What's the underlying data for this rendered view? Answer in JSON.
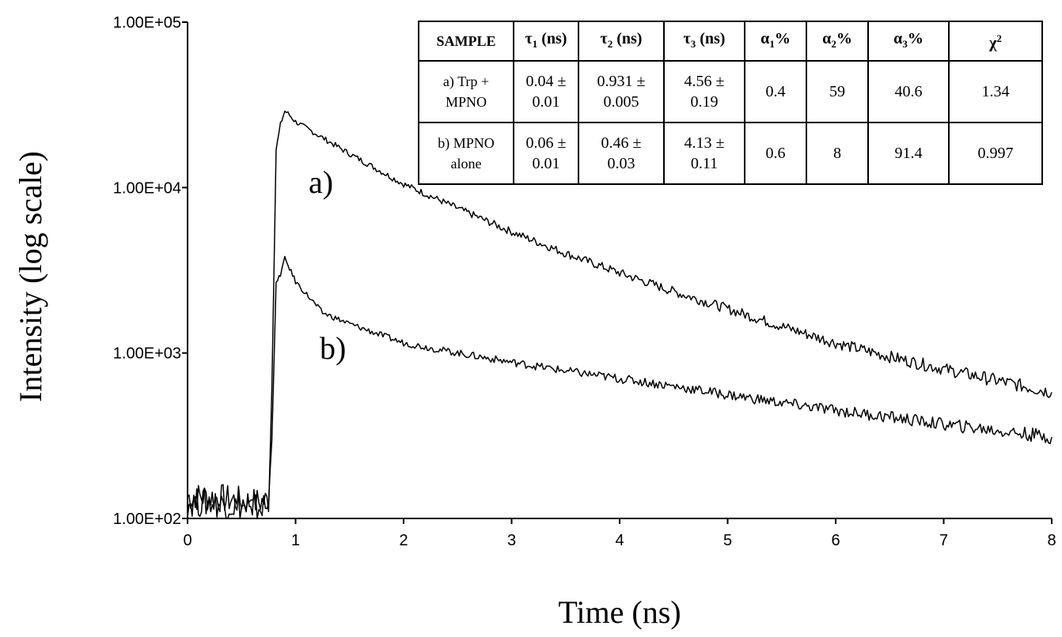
{
  "chart_data": {
    "type": "line",
    "ylabel": "Intensity (log scale)",
    "xlabel": "Time (ns)",
    "y_scale": "log",
    "xlim": [
      0,
      8
    ],
    "ylim": [
      100,
      100000
    ],
    "x_ticks": [
      "0",
      "1",
      "2",
      "3",
      "4",
      "5",
      "6",
      "7",
      "8"
    ],
    "y_ticks": [
      {
        "value": 100000,
        "label": "1.00E+05"
      },
      {
        "value": 10000,
        "label": "1.00E+04"
      },
      {
        "value": 1000,
        "label": "1.00E+03"
      },
      {
        "value": 100,
        "label": "1.00E+02"
      }
    ],
    "series": [
      {
        "name": "a)",
        "x": [
          0.0,
          0.2,
          0.4,
          0.6,
          0.75,
          0.78,
          0.82,
          0.86,
          0.9,
          0.93,
          1.0,
          1.25,
          1.5,
          2.0,
          2.5,
          3.0,
          3.5,
          4.0,
          4.5,
          5.0,
          5.5,
          6.0,
          6.5,
          7.0,
          7.5,
          8.0
        ],
        "y": [
          135,
          135,
          130,
          125,
          128,
          600,
          17000,
          24000,
          29000,
          28000,
          25000,
          20000,
          16000,
          10500,
          7500,
          5400,
          4000,
          3050,
          2350,
          1850,
          1450,
          1150,
          950,
          800,
          680,
          580
        ]
      },
      {
        "name": "b)",
        "x": [
          0.0,
          0.2,
          0.4,
          0.6,
          0.75,
          0.78,
          0.82,
          0.86,
          0.9,
          0.93,
          1.0,
          1.25,
          1.5,
          2.0,
          2.5,
          3.0,
          3.5,
          4.0,
          4.5,
          5.0,
          5.5,
          6.0,
          6.5,
          7.0,
          7.5,
          8.0
        ],
        "y": [
          125,
          125,
          120,
          115,
          118,
          300,
          2600,
          3000,
          3700,
          3400,
          2700,
          1750,
          1500,
          1150,
          1000,
          880,
          780,
          700,
          630,
          560,
          500,
          450,
          410,
          370,
          340,
          310
        ]
      }
    ]
  },
  "table": {
    "headers": [
      "SAMPLE",
      "τ1 (ns)",
      "τ2 (ns)",
      "τ3 (ns)",
      "α1%",
      "α2%",
      "α3%",
      "χ2"
    ],
    "header_parts": [
      {
        "base": "SAMPLE",
        "sub": "",
        "sup": "",
        "tail": ""
      },
      {
        "base": "τ",
        "sub": "1",
        "sup": "",
        "tail": " (ns)"
      },
      {
        "base": "τ",
        "sub": "2",
        "sup": "",
        "tail": " (ns)"
      },
      {
        "base": "τ",
        "sub": "3",
        "sup": "",
        "tail": " (ns)"
      },
      {
        "base": "α",
        "sub": "1",
        "sup": "",
        "tail": "%"
      },
      {
        "base": "α",
        "sub": "2",
        "sup": "",
        "tail": "%"
      },
      {
        "base": "α",
        "sub": "3",
        "sup": "",
        "tail": "%"
      },
      {
        "base": "χ",
        "sub": "",
        "sup": "2",
        "tail": ""
      }
    ],
    "rows": [
      [
        [
          "a) Trp +",
          "MPNO"
        ],
        [
          "0.04 ±",
          "0.01"
        ],
        [
          "0.931 ±",
          "0.005"
        ],
        [
          "4.56 ±",
          "0.19"
        ],
        [
          "0.4"
        ],
        [
          "59"
        ],
        [
          "40.6"
        ],
        [
          "1.34"
        ]
      ],
      [
        [
          "b) MPNO",
          "alone"
        ],
        [
          "0.06 ±",
          "0.01"
        ],
        [
          "0.46 ±",
          "0.03"
        ],
        [
          "4.13 ±",
          "0.11"
        ],
        [
          "0.6"
        ],
        [
          "8"
        ],
        [
          "91.4"
        ],
        [
          "0.997"
        ]
      ]
    ]
  }
}
